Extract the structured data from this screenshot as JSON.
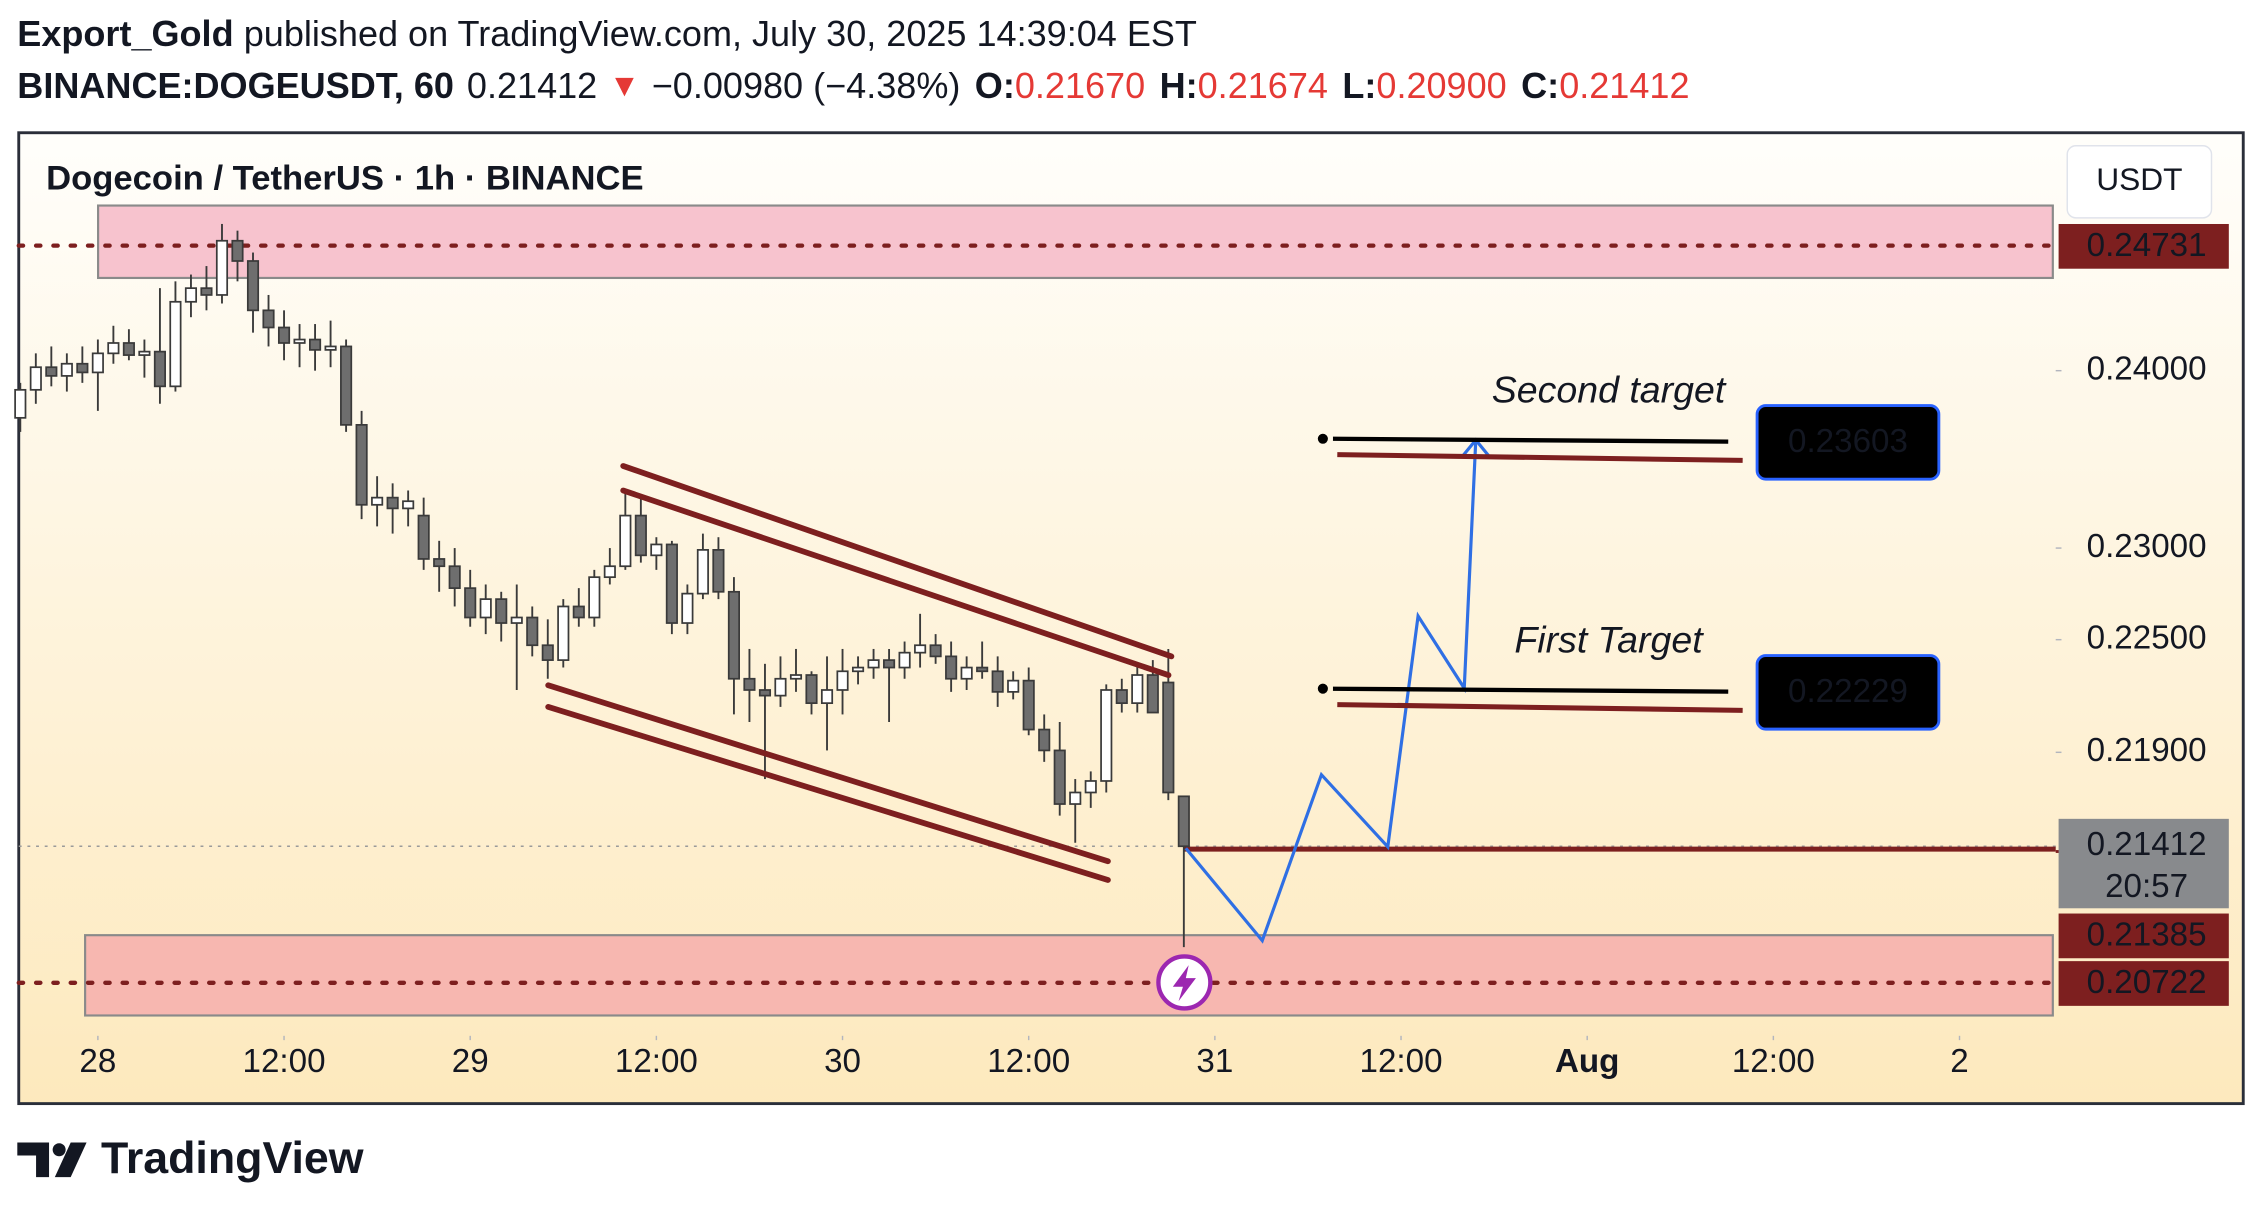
{
  "header": {
    "author": "Export_Gold",
    "published": "published on TradingView.com, July 30, 2025 14:39:04 EST",
    "symbol": "BINANCE:DOGEUSDT, 60",
    "last": "0.21412",
    "change": "−0.00980 (−4.38%)",
    "ohlc": [
      {
        "key": "O:",
        "value": "0.21670"
      },
      {
        "key": "H:",
        "value": "0.21674"
      },
      {
        "key": "L:",
        "value": "0.20900"
      },
      {
        "key": "C:",
        "value": "0.21412"
      }
    ]
  },
  "chart_data": {
    "type": "candlestick",
    "title": "Dogecoin / TetherUS · 1h · BINANCE",
    "currency": "USDT",
    "up_color": "#ffffff",
    "down_color": "#6e6e6e",
    "x": [
      -5,
      -4,
      -3,
      -2,
      -1,
      0,
      1,
      2,
      3,
      4,
      5,
      6,
      7,
      8,
      9,
      10,
      11,
      12,
      13,
      14,
      15,
      16,
      17,
      18,
      19,
      20,
      21,
      22,
      23,
      24,
      25,
      26,
      27,
      28,
      29,
      30,
      31,
      32,
      33,
      34,
      35,
      36,
      37,
      38,
      39,
      40,
      41,
      42,
      43,
      44,
      45,
      46,
      47,
      48,
      49,
      50,
      51,
      52,
      53,
      54,
      55,
      56,
      57,
      58,
      59,
      60,
      61,
      62,
      63,
      64,
      65,
      66,
      67,
      68,
      69,
      70
    ],
    "open": [
      0.2373,
      0.2389,
      0.2402,
      0.2397,
      0.2404,
      0.2399,
      0.241,
      0.2416,
      0.2409,
      0.2411,
      0.2391,
      0.244,
      0.2448,
      0.2444,
      0.2476,
      0.2464,
      0.2435,
      0.2425,
      0.2416,
      0.2418,
      0.2412,
      0.2414,
      0.2369,
      0.2324,
      0.2328,
      0.2322,
      0.2318,
      0.2294,
      0.229,
      0.2278,
      0.2262,
      0.2272,
      0.2259,
      0.2262,
      0.2247,
      0.2239,
      0.2268,
      0.2262,
      0.2284,
      0.229,
      0.2318,
      0.2296,
      0.2302,
      0.2259,
      0.2275,
      0.2299,
      0.2276,
      0.2229,
      0.2223,
      0.222,
      0.2229,
      0.2231,
      0.2216,
      0.2223,
      0.2233,
      0.2235,
      0.2239,
      0.2235,
      0.2243,
      0.2247,
      0.2241,
      0.2229,
      0.2235,
      0.2233,
      0.2222,
      0.2228,
      0.2202,
      0.2191,
      0.2163,
      0.2169,
      0.2175,
      0.2223,
      0.2216,
      0.2231,
      0.2227,
      0.2167
    ],
    "high": [
      0.2393,
      0.241,
      0.2414,
      0.241,
      0.2414,
      0.2418,
      0.2426,
      0.2424,
      0.2418,
      0.2448,
      0.2452,
      0.2456,
      0.2461,
      0.2486,
      0.2482,
      0.2469,
      0.2444,
      0.2435,
      0.2427,
      0.2427,
      0.2429,
      0.2418,
      0.2377,
      0.234,
      0.2336,
      0.2332,
      0.2328,
      0.2304,
      0.23,
      0.2288,
      0.228,
      0.2276,
      0.228,
      0.2268,
      0.2261,
      0.2272,
      0.2278,
      0.2288,
      0.23,
      0.2332,
      0.2328,
      0.2306,
      0.2304,
      0.228,
      0.2308,
      0.2306,
      0.2284,
      0.2245,
      0.2237,
      0.2241,
      0.2245,
      0.2233,
      0.2241,
      0.2245,
      0.2241,
      0.2245,
      0.2245,
      0.2249,
      0.2264,
      0.2253,
      0.2249,
      0.2241,
      0.2249,
      0.2241,
      0.2233,
      0.2235,
      0.221,
      0.2206,
      0.2176,
      0.218,
      0.2226,
      0.2229,
      0.2237,
      0.2239,
      0.2245,
      0.21674
    ],
    "low": [
      0.2365,
      0.2381,
      0.2391,
      0.2388,
      0.2393,
      0.2377,
      0.2404,
      0.2406,
      0.2396,
      0.2381,
      0.2388,
      0.2431,
      0.2435,
      0.2439,
      0.2452,
      0.2422,
      0.2414,
      0.2406,
      0.2402,
      0.24,
      0.2402,
      0.2365,
      0.2316,
      0.2312,
      0.2308,
      0.2312,
      0.2288,
      0.2276,
      0.2268,
      0.2257,
      0.2253,
      0.2249,
      0.2223,
      0.2241,
      0.2229,
      0.2235,
      0.2257,
      0.2257,
      0.228,
      0.2288,
      0.2292,
      0.2288,
      0.2253,
      0.2253,
      0.2272,
      0.2272,
      0.221,
      0.2206,
      0.2176,
      0.2214,
      0.2222,
      0.221,
      0.2191,
      0.221,
      0.2226,
      0.2229,
      0.2206,
      0.2229,
      0.2235,
      0.2237,
      0.2222,
      0.2223,
      0.2229,
      0.2214,
      0.2218,
      0.2199,
      0.2185,
      0.2157,
      0.2143,
      0.2161,
      0.2169,
      0.2211,
      0.2211,
      0.2211,
      0.2165,
      0.209
    ],
    "close": [
      0.2389,
      0.2402,
      0.2397,
      0.2404,
      0.2399,
      0.241,
      0.2416,
      0.2409,
      0.2411,
      0.2391,
      0.244,
      0.2448,
      0.2444,
      0.2476,
      0.2464,
      0.2435,
      0.2425,
      0.2416,
      0.2418,
      0.2412,
      0.2414,
      0.2369,
      0.2324,
      0.2328,
      0.2322,
      0.2326,
      0.2294,
      0.229,
      0.2278,
      0.2262,
      0.2272,
      0.2259,
      0.2262,
      0.2247,
      0.2239,
      0.2268,
      0.2262,
      0.2284,
      0.229,
      0.2318,
      0.2296,
      0.2302,
      0.2259,
      0.2275,
      0.2299,
      0.2276,
      0.2229,
      0.2223,
      0.222,
      0.2229,
      0.2231,
      0.2216,
      0.2223,
      0.2233,
      0.2235,
      0.2239,
      0.2235,
      0.2243,
      0.2247,
      0.2241,
      0.2229,
      0.2235,
      0.2233,
      0.2222,
      0.2228,
      0.2202,
      0.2191,
      0.2163,
      0.2169,
      0.2175,
      0.2223,
      0.2216,
      0.2231,
      0.2211,
      0.2169,
      0.21412
    ],
    "xlim": [
      -5.1,
      126.2
    ],
    "xticks": [
      {
        "value": 0,
        "label": "28"
      },
      {
        "value": 12,
        "label": "12:00"
      },
      {
        "value": 24,
        "label": "29"
      },
      {
        "value": 36,
        "label": "12:00"
      },
      {
        "value": 48,
        "label": "30"
      },
      {
        "value": 60,
        "label": "12:00"
      },
      {
        "value": 72,
        "label": "31"
      },
      {
        "value": 84,
        "label": "12:00"
      },
      {
        "value": 96,
        "label": "Aug"
      },
      {
        "value": 108,
        "label": "12:00"
      },
      {
        "value": 120,
        "label": "2"
      }
    ],
    "ylim": [
      0.2046,
      0.2541
    ],
    "log_scale": true,
    "yticks": [
      {
        "value": 0.24,
        "label": "0.24000"
      },
      {
        "value": 0.23,
        "label": "0.23000"
      },
      {
        "value": 0.225,
        "label": "0.22500"
      },
      {
        "value": 0.219,
        "label": "0.21900"
      }
    ],
    "last_price": {
      "value": 0.21412,
      "label": "0.21412",
      "countdown": "20:57"
    },
    "levels": [
      {
        "value": 0.24731,
        "label": "0.24731"
      },
      {
        "value": 0.21385,
        "label": "0.21385"
      },
      {
        "value": 0.20722,
        "label": "0.20722"
      }
    ],
    "zones": [
      {
        "top": 0.2497,
        "bottom": 0.2454,
        "color": "#f7c3ce"
      },
      {
        "top": 0.2096,
        "bottom": 0.2056,
        "color": "#f7b7b0"
      }
    ],
    "targets": [
      {
        "name": "Second target",
        "value": 0.23603,
        "label": "0.23603"
      },
      {
        "name": "First Target",
        "value": 0.22229,
        "label": "0.22229"
      }
    ]
  },
  "branding": "TradingView"
}
